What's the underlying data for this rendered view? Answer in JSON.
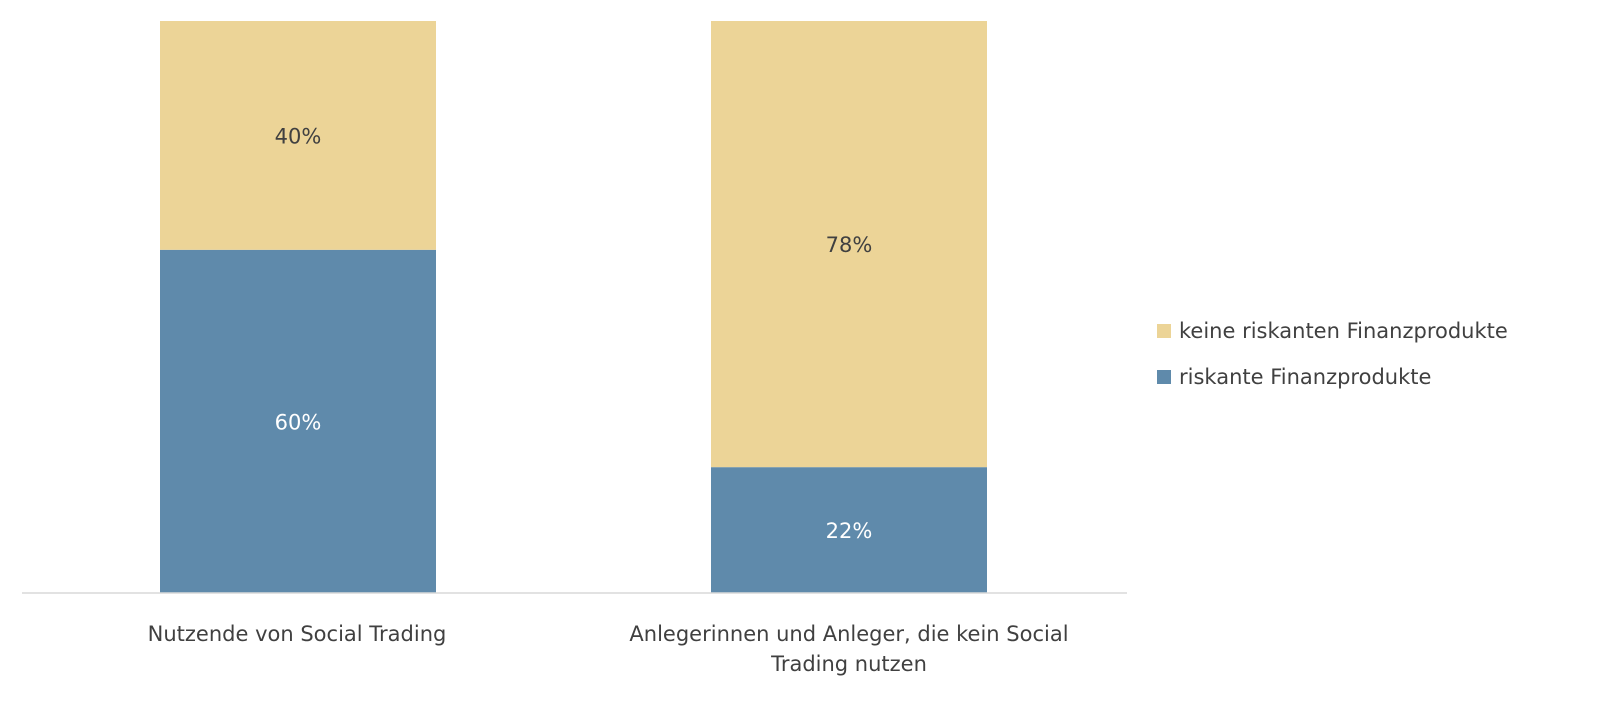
{
  "chart_data": {
    "type": "bar",
    "stacked": true,
    "percent": true,
    "title": "",
    "xlabel": "",
    "ylabel": "",
    "ylim": [
      0,
      100
    ],
    "grid": false,
    "categories": [
      "Nutzende von Social Trading",
      "Anlegerinnen und Anleger, die kein Social Trading nutzen"
    ],
    "series": [
      {
        "name": "riskante Finanzprodukte",
        "color": "#5f8aab",
        "label_color": "#ffffff",
        "values": [
          60,
          22
        ],
        "labels": [
          "60%",
          "22%"
        ]
      },
      {
        "name": "keine riskanten Finanzprodukte",
        "color": "#ecd497",
        "label_color": "#404040",
        "values": [
          40,
          78
        ],
        "labels": [
          "40%",
          "78%"
        ]
      }
    ],
    "legend": {
      "position": "right",
      "entries": [
        "keine riskanten Finanzprodukte",
        "riskante Finanzprodukte"
      ]
    }
  }
}
